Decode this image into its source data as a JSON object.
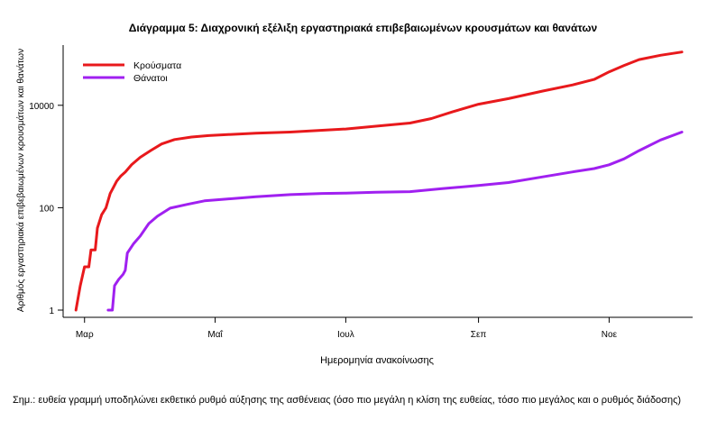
{
  "chart_data": {
    "type": "line",
    "title": "Διάγραμμα 5: Διαχρονική εξέλιξη εργαστηριακά επιβεβαιωμένων κρουσμάτων και θανάτων",
    "xlabel": "Ημερομηνία ανακοίνωσης",
    "ylabel": "Αριθμός εργαστηριακά επιβεβαιωμένων κρουσμάτων και θανάτων",
    "y_scale": "log",
    "ylim": [
      1,
      150000
    ],
    "yticks": [
      1,
      100,
      10000
    ],
    "ytick_labels": [
      "1",
      "100",
      "10000"
    ],
    "xlim": [
      "2020-02-20",
      "2020-12-10"
    ],
    "xticks": [
      {
        "date": "2020-03-01",
        "label": "Μαρ"
      },
      {
        "date": "2020-05-01",
        "label": "Μαΐ"
      },
      {
        "date": "2020-07-01",
        "label": "Ιουλ"
      },
      {
        "date": "2020-09-01",
        "label": "Σεπ"
      },
      {
        "date": "2020-11-01",
        "label": "Νοε"
      }
    ],
    "legend_position": "top-left",
    "series": [
      {
        "name": "Κρούσματα",
        "color": "#e8191c",
        "points": [
          [
            "2020-02-26",
            1
          ],
          [
            "2020-02-28",
            3
          ],
          [
            "2020-03-01",
            7
          ],
          [
            "2020-03-03",
            7
          ],
          [
            "2020-03-04",
            15
          ],
          [
            "2020-03-06",
            15
          ],
          [
            "2020-03-07",
            40
          ],
          [
            "2020-03-09",
            73
          ],
          [
            "2020-03-11",
            99
          ],
          [
            "2020-03-13",
            190
          ],
          [
            "2020-03-14",
            228
          ],
          [
            "2020-03-16",
            331
          ],
          [
            "2020-03-18",
            418
          ],
          [
            "2020-03-20",
            495
          ],
          [
            "2020-03-23",
            695
          ],
          [
            "2020-03-27",
            966
          ],
          [
            "2020-04-01",
            1314
          ],
          [
            "2020-04-06",
            1755
          ],
          [
            "2020-04-12",
            2145
          ],
          [
            "2020-04-20",
            2401
          ],
          [
            "2020-04-28",
            2566
          ],
          [
            "2020-05-06",
            2663
          ],
          [
            "2020-05-20",
            2850
          ],
          [
            "2020-06-05",
            3000
          ],
          [
            "2020-06-20",
            3250
          ],
          [
            "2020-07-01",
            3450
          ],
          [
            "2020-07-15",
            3900
          ],
          [
            "2020-07-31",
            4500
          ],
          [
            "2020-08-10",
            5500
          ],
          [
            "2020-08-20",
            7500
          ],
          [
            "2020-09-01",
            10500
          ],
          [
            "2020-09-15",
            13500
          ],
          [
            "2020-10-01",
            19000
          ],
          [
            "2020-10-15",
            25000
          ],
          [
            "2020-10-25",
            32000
          ],
          [
            "2020-11-01",
            45000
          ],
          [
            "2020-11-08",
            60000
          ],
          [
            "2020-11-15",
            78000
          ],
          [
            "2020-11-25",
            95000
          ],
          [
            "2020-12-05",
            110000
          ]
        ]
      },
      {
        "name": "Θάνατοι",
        "color": "#a020f0",
        "points": [
          [
            "2020-03-12",
            1
          ],
          [
            "2020-03-14",
            1
          ],
          [
            "2020-03-15",
            3
          ],
          [
            "2020-03-17",
            4
          ],
          [
            "2020-03-19",
            5
          ],
          [
            "2020-03-20",
            6
          ],
          [
            "2020-03-21",
            13
          ],
          [
            "2020-03-24",
            20
          ],
          [
            "2020-03-27",
            28
          ],
          [
            "2020-03-31",
            49
          ],
          [
            "2020-04-04",
            68
          ],
          [
            "2020-04-10",
            98
          ],
          [
            "2020-04-18",
            116
          ],
          [
            "2020-04-26",
            136
          ],
          [
            "2020-05-06",
            147
          ],
          [
            "2020-05-20",
            163
          ],
          [
            "2020-06-05",
            180
          ],
          [
            "2020-06-20",
            190
          ],
          [
            "2020-07-01",
            193
          ],
          [
            "2020-07-15",
            200
          ],
          [
            "2020-07-31",
            206
          ],
          [
            "2020-08-15",
            235
          ],
          [
            "2020-09-01",
            271
          ],
          [
            "2020-09-15",
            310
          ],
          [
            "2020-10-01",
            400
          ],
          [
            "2020-10-15",
            500
          ],
          [
            "2020-10-25",
            580
          ],
          [
            "2020-11-01",
            690
          ],
          [
            "2020-11-08",
            900
          ],
          [
            "2020-11-15",
            1300
          ],
          [
            "2020-11-25",
            2100
          ],
          [
            "2020-12-05",
            3000
          ]
        ]
      }
    ]
  },
  "note": "Σημ.: ευθεία γραμμή υποδηλώνει εκθετικό ρυθμό αύξησης της ασθένειας (όσο πιο μεγάλη η κλίση της ευθείας, τόσο πιο μεγάλος και ο ρυθμός διάδοσης)"
}
